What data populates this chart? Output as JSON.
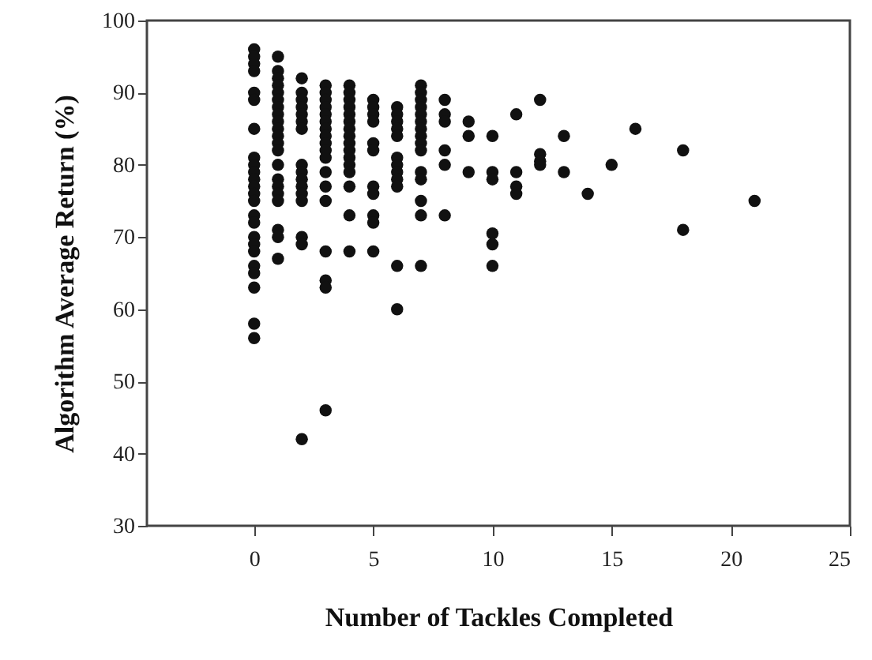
{
  "chart_data": {
    "type": "scatter",
    "xlabel": "Number of Tackles Completed",
    "ylabel": "Algorithm Average Return (%)",
    "xlim": [
      -4.5,
      25
    ],
    "xticks": [
      0,
      5,
      10,
      15,
      20,
      25
    ],
    "ylim": [
      30,
      100
    ],
    "yticks": [
      30,
      40,
      50,
      60,
      70,
      80,
      90,
      100
    ],
    "grid": false,
    "marker": "circle",
    "series": [
      {
        "color": "#111111",
        "x": [
          0,
          0,
          0,
          0,
          0,
          0,
          0,
          0,
          0,
          0,
          0,
          0,
          0,
          0,
          0,
          0,
          0,
          0,
          0,
          0,
          0,
          0,
          0,
          0,
          1,
          1,
          1,
          1,
          1,
          1,
          1,
          1,
          1,
          1,
          1,
          1,
          1,
          1,
          1,
          1,
          1,
          1,
          1,
          1,
          1,
          2,
          2,
          2,
          2,
          2,
          2,
          2,
          2,
          2,
          2,
          2,
          2,
          2,
          2,
          2,
          2,
          3,
          3,
          3,
          3,
          3,
          3,
          3,
          3,
          3,
          3,
          3,
          3,
          3,
          3,
          3,
          3,
          3,
          3,
          4,
          4,
          4,
          4,
          4,
          4,
          4,
          4,
          4,
          4,
          4,
          4,
          4,
          4,
          4,
          4,
          5,
          5,
          5,
          5,
          5,
          5,
          5,
          5,
          5,
          5,
          5,
          6,
          6,
          6,
          6,
          6,
          6,
          6,
          6,
          6,
          6,
          6,
          6,
          7,
          7,
          7,
          7,
          7,
          7,
          7,
          7,
          7,
          7,
          7,
          7,
          7,
          7,
          7,
          8,
          8,
          8,
          8,
          8,
          8,
          9,
          9,
          9,
          10,
          10,
          10,
          10,
          10,
          10,
          11,
          11,
          11,
          11,
          12,
          12,
          12,
          12,
          13,
          13,
          14,
          15,
          16,
          18,
          18,
          21
        ],
        "values": [
          96,
          95,
          94,
          93,
          90,
          89,
          85,
          81,
          80,
          79,
          78,
          77,
          76,
          75,
          73,
          72,
          70,
          69,
          68,
          66,
          65,
          63,
          58,
          56,
          95,
          93,
          92,
          91,
          90,
          89,
          88,
          87,
          86,
          85,
          84,
          83,
          82,
          80,
          78,
          77,
          76,
          75,
          71,
          70,
          67,
          92,
          90,
          89,
          88,
          87,
          86,
          85,
          80,
          79,
          78,
          77,
          76,
          75,
          70,
          69,
          42,
          91,
          90,
          89,
          88,
          87,
          86,
          85,
          84,
          83,
          82,
          81,
          79,
          77,
          75,
          68,
          64,
          63,
          46,
          91,
          90,
          89,
          88,
          87,
          86,
          85,
          84,
          83,
          82,
          81,
          80,
          79,
          77,
          73,
          68,
          89,
          88,
          87,
          86,
          83,
          82,
          77,
          76,
          73,
          72,
          68,
          88,
          87,
          86,
          85,
          84,
          81,
          80,
          79,
          78,
          77,
          66,
          60,
          91,
          90,
          89,
          88,
          87,
          86,
          85,
          84,
          83,
          82,
          79,
          78,
          75,
          73,
          66,
          89,
          87,
          86,
          82,
          80,
          73,
          86,
          84,
          79,
          84,
          79,
          78,
          70.5,
          69,
          66,
          87,
          79,
          77,
          76,
          89,
          81.5,
          80.5,
          80,
          84,
          79,
          76,
          80,
          85,
          82,
          71,
          75
        ]
      }
    ]
  }
}
